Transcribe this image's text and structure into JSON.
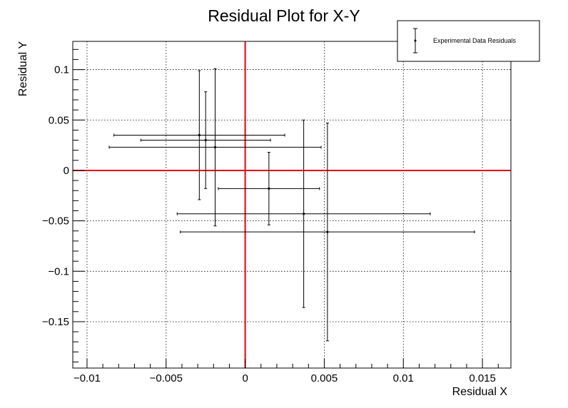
{
  "chart_data": {
    "type": "scatter",
    "title": "Residual Plot for X-Y",
    "xlabel": "Residual X",
    "ylabel": "Residual Y",
    "xlim": [
      -0.0109,
      0.0168
    ],
    "ylim": [
      -0.196,
      0.128
    ],
    "grid": true,
    "legend_position": "top-right",
    "x_ticks": [
      -0.01,
      -0.005,
      0,
      0.005,
      0.01,
      0.015
    ],
    "x_tick_labels": [
      "−0.01",
      "−0.005",
      "0",
      "0.005",
      "0.01",
      "0.015"
    ],
    "y_ticks": [
      0.1,
      0.05,
      0,
      -0.05,
      -0.1,
      -0.15
    ],
    "y_tick_labels": [
      "0.1",
      "0.05",
      "0",
      "−0.05",
      "−0.1",
      "−0.15"
    ],
    "reference_lines": {
      "x": 0,
      "y": 0,
      "color": "#e8000b"
    },
    "series": [
      {
        "name": "Experimental Data Residuals",
        "color": "#000000",
        "points": [
          {
            "x": -0.0029,
            "y": 0.035,
            "x_err": 0.0054,
            "y_err": 0.064
          },
          {
            "x": -0.0025,
            "y": 0.03,
            "x_err": 0.0041,
            "y_err": 0.048
          },
          {
            "x": -0.0019,
            "y": 0.023,
            "x_err": 0.0067,
            "y_err": 0.078
          },
          {
            "x": 0.0015,
            "y": -0.018,
            "x_err": 0.0032,
            "y_err": 0.036
          },
          {
            "x": 0.0037,
            "y": -0.043,
            "x_err": 0.008,
            "y_err": 0.093
          },
          {
            "x": 0.0052,
            "y": -0.061,
            "x_err": 0.0093,
            "y_err": 0.108
          }
        ]
      }
    ]
  }
}
